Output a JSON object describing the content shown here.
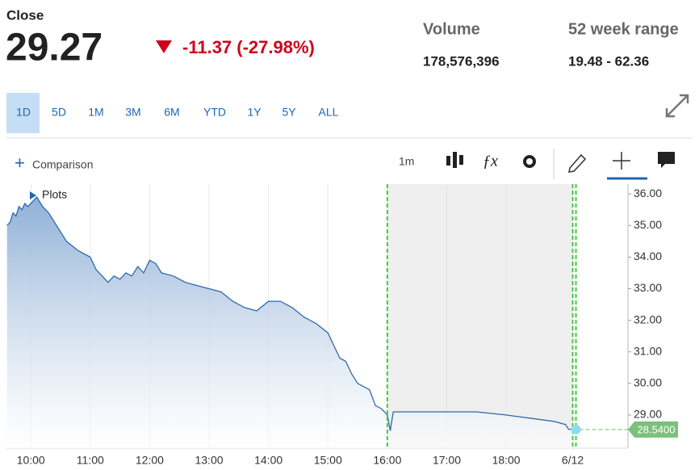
{
  "quote": {
    "label": "Close",
    "price": "29.27",
    "change": "-11.37 (-27.98%)",
    "volume_label": "Volume",
    "volume": "178,576,396",
    "range_label": "52 week range",
    "range": "19.48 - 62.36"
  },
  "ranges": [
    "1D",
    "5D",
    "1M",
    "3M",
    "6M",
    "YTD",
    "1Y",
    "5Y",
    "ALL"
  ],
  "toolbar": {
    "comparison": "Comparison",
    "interval": "1m",
    "plots": "Plots"
  },
  "chart_data": {
    "type": "area",
    "color": "#2c6aad",
    "grid": "x",
    "x": [
      9.6,
      9.65,
      9.7,
      9.75,
      9.8,
      9.85,
      9.9,
      9.95,
      10.0,
      10.1,
      10.2,
      10.3,
      10.4,
      10.5,
      10.6,
      10.8,
      11.0,
      11.1,
      11.2,
      11.3,
      11.4,
      11.5,
      11.6,
      11.7,
      11.8,
      11.9,
      12.0,
      12.1,
      12.2,
      12.4,
      12.6,
      12.8,
      13.0,
      13.2,
      13.4,
      13.6,
      13.8,
      14.0,
      14.2,
      14.4,
      14.6,
      14.8,
      15.0,
      15.1,
      15.2,
      15.3,
      15.4,
      15.5,
      15.6,
      15.7,
      15.8,
      15.9,
      16.0,
      16.05,
      16.1,
      16.3,
      16.6,
      17.0,
      17.5,
      18.0,
      18.2,
      18.4,
      18.6,
      18.8,
      19.0,
      19.05,
      19.12
    ],
    "values": [
      35.0,
      35.1,
      35.4,
      35.3,
      35.6,
      35.5,
      35.7,
      35.6,
      35.7,
      35.9,
      35.6,
      35.4,
      35.1,
      34.8,
      34.5,
      34.2,
      34.0,
      33.6,
      33.4,
      33.2,
      33.4,
      33.3,
      33.5,
      33.4,
      33.7,
      33.5,
      33.9,
      33.8,
      33.5,
      33.4,
      33.2,
      33.1,
      33.0,
      32.9,
      32.6,
      32.4,
      32.3,
      32.6,
      32.6,
      32.4,
      32.1,
      31.9,
      31.6,
      31.2,
      30.8,
      30.7,
      30.3,
      30.0,
      29.9,
      29.8,
      29.3,
      29.2,
      29.0,
      28.5,
      29.1,
      29.1,
      29.1,
      29.1,
      29.1,
      29.0,
      28.95,
      28.9,
      28.85,
      28.8,
      28.7,
      28.55,
      28.54
    ],
    "last_price": {
      "value": 28.54,
      "label": "28.5400"
    },
    "session_marks": [
      16,
      19.12
    ],
    "xlim": [
      9.59,
      20.05
    ],
    "ylim": [
      27.95,
      36.31
    ],
    "xticks": [
      {
        "value": 10,
        "label": "10:00"
      },
      {
        "value": 11,
        "label": "11:00"
      },
      {
        "value": 12,
        "label": "12:00"
      },
      {
        "value": 13,
        "label": "13:00"
      },
      {
        "value": 14,
        "label": "14:00"
      },
      {
        "value": 15,
        "label": "15:00"
      },
      {
        "value": 16,
        "label": "16:00"
      },
      {
        "value": 17,
        "label": "17:00"
      },
      {
        "value": 18,
        "label": "18:00"
      },
      {
        "value": 19.12,
        "label": "6/12"
      }
    ],
    "yticks": [
      {
        "value": 36,
        "label": "36.00"
      },
      {
        "value": 35,
        "label": "35.00"
      },
      {
        "value": 34,
        "label": "34.00"
      },
      {
        "value": 33,
        "label": "33.00"
      },
      {
        "value": 32,
        "label": "32.00"
      },
      {
        "value": 31,
        "label": "31.00"
      },
      {
        "value": 30,
        "label": "30.00"
      },
      {
        "value": 29,
        "label": "29.00"
      }
    ]
  }
}
